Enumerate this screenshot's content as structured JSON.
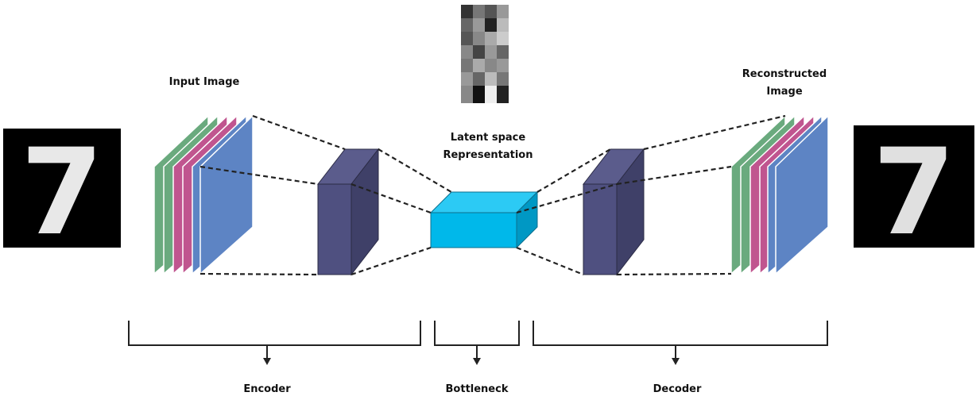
{
  "labels": {
    "input_image": "Input Image",
    "reconstructed_line1": "Reconstructed",
    "reconstructed_line2": "Image",
    "latent_line1": "Latent space",
    "latent_line2": "Representation",
    "encoder": "Encoder",
    "bottleneck": "Bottleneck",
    "decoder": "Decoder"
  },
  "digits": {
    "input": "7",
    "output": "7"
  },
  "colors": {
    "green_layer": "#6aaa7e",
    "magenta_layer": "#c0558f",
    "blue_layer": "#5d84c4",
    "conv_block_front": "#4f5080",
    "conv_block_side": "#3f4068",
    "latent_block": "#00b8ea",
    "latent_block_top": "#2ccaf4",
    "latent_block_side": "#0098c4"
  }
}
